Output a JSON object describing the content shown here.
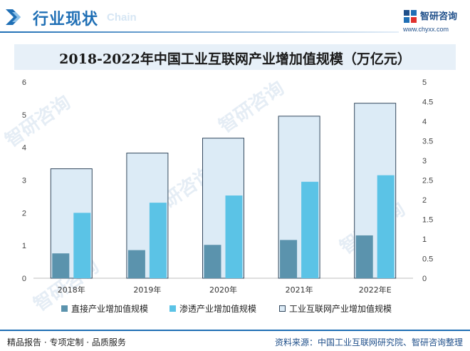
{
  "header": {
    "title": "行业现状",
    "subtitle": "Chain",
    "logo_name": "智研咨询",
    "logo_url": "www.chyxx.com"
  },
  "colors": {
    "accent": "#1f6fb5",
    "direct": "#5b93ad",
    "penetration": "#5bc3e6",
    "total_fill": "#dcebf6",
    "total_stroke": "#34495e"
  },
  "watermark": "智研咨询",
  "chart_data": {
    "type": "bar",
    "title": "2018-2022年中国工业互联网产业增加值规模（万亿元）",
    "categories": [
      "2018年",
      "2019年",
      "2020年",
      "2021年",
      "2022年E"
    ],
    "y_left": {
      "ylim": [
        0,
        6
      ],
      "ticks": [
        "0",
        "1",
        "2",
        "3",
        "4",
        "5",
        "6"
      ]
    },
    "y_right": {
      "ylim": [
        0,
        5
      ],
      "ticks": [
        "0",
        "0.5",
        "1",
        "1.5",
        "2",
        "2.5",
        "3",
        "3.5",
        "4",
        "4.5",
        "5"
      ]
    },
    "grid": false,
    "legend_position": "bottom",
    "series": [
      {
        "name": "直接产业增加值规模",
        "axis": "left",
        "values": [
          0.76,
          0.86,
          1.02,
          1.17,
          1.31
        ]
      },
      {
        "name": "渗透产业增加值规模",
        "axis": "left",
        "values": [
          2.0,
          2.31,
          2.53,
          2.95,
          3.15
        ]
      },
      {
        "name": "工业互联网产业增加值规模",
        "axis": "right",
        "values": [
          2.79,
          3.19,
          3.57,
          4.13,
          4.46
        ]
      }
    ]
  },
  "footer": {
    "left": "精品报告 · 专项定制 · 品质服务",
    "right": "资料来源：中国工业互联网研究院、智研咨询整理"
  }
}
